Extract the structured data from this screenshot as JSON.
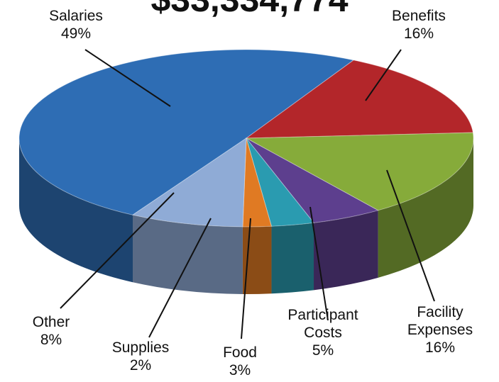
{
  "chart_data": {
    "type": "pie",
    "title": "$33,334,774",
    "categories": [
      "Salaries",
      "Benefits",
      "Facility Expenses",
      "Participant Costs",
      "Food",
      "Supplies",
      "Other"
    ],
    "values": [
      49,
      16,
      16,
      5,
      3,
      2,
      8
    ],
    "value_labels": [
      "49%",
      "16%",
      "16%",
      "5%",
      "3%",
      "2%",
      "8%"
    ],
    "colors": [
      "#2e6db4",
      "#b3262a",
      "#86ab3a",
      "#5d3f8e",
      "#2a9bb0",
      "#e07a23",
      "#8fabd6"
    ]
  }
}
